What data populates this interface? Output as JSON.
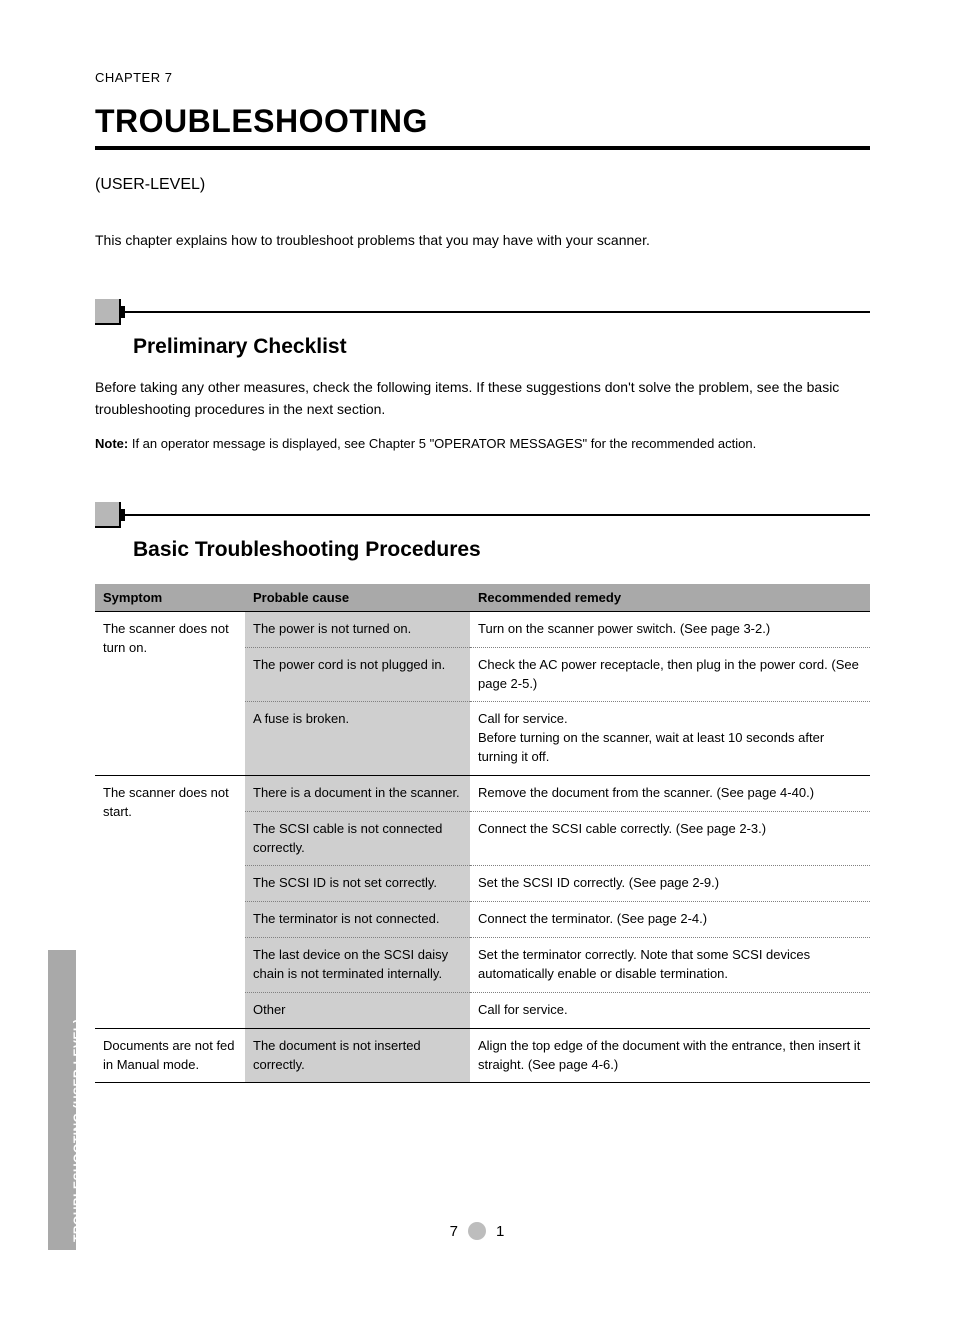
{
  "chapter_label": "CHAPTER 7",
  "chapter_title": "TROUBLESHOOTING",
  "subtitle": "(USER-LEVEL)",
  "intro": "This chapter explains how to troubleshoot problems that you may have with your scanner.",
  "sections": [
    {
      "title": "Preliminary Checklist",
      "body": "Before taking any other measures, check the following items. If these suggestions don't solve the problem, see the basic troubleshooting procedures in the next section.",
      "note_label": "Note:",
      "note_body": "If an operator message is displayed, see Chapter 5 \"OPERATOR MESSAGES\" for the recommended action."
    },
    {
      "title": "Basic Troubleshooting Procedures"
    }
  ],
  "table": {
    "columns": [
      "Symptom",
      "Probable cause",
      "Recommended remedy"
    ],
    "groups": [
      {
        "symptom": "The scanner does not turn on.",
        "rows": [
          {
            "cause": "The power is not turned on.",
            "remedy": "Turn on the scanner power switch. (See page 3-2.)"
          },
          {
            "cause": "The power cord is not plugged in.",
            "remedy": "Check the AC power receptacle, then plug in the power cord. (See page 2-5.)"
          },
          {
            "cause": "A fuse is broken.",
            "remedy": "Call for service.\nBefore turning on the scanner, wait at least 10 seconds after turning it off."
          }
        ]
      },
      {
        "symptom": "The scanner does not start.",
        "rows": [
          {
            "cause": "There is a document in the scanner.",
            "remedy": "Remove the document from the scanner. (See page 4-40.)"
          },
          {
            "cause": "The SCSI cable is not connected correctly.",
            "remedy": "Connect the SCSI cable correctly. (See page 2-3.)"
          },
          {
            "cause": "The SCSI ID is not set correctly.",
            "remedy": "Set the SCSI ID correctly. (See page 2-9.)"
          },
          {
            "cause": "The terminator is not connected.",
            "remedy": "Connect the terminator. (See page 2-4.)"
          },
          {
            "cause": "The last device on the SCSI daisy chain is not terminated internally.",
            "remedy": "Set the terminator correctly. Note that some SCSI devices automatically enable or disable termination."
          },
          {
            "cause": "Other",
            "remedy": "Call for service."
          }
        ]
      },
      {
        "symptom": "Documents are not fed in Manual mode.",
        "rows": [
          {
            "cause": "The document is not inserted correctly.",
            "remedy": "Align the top edge of the document with the entrance, then insert it straight. (See page 4-6.)"
          }
        ]
      }
    ]
  },
  "side_tab": "TROUBLESHOOTING (USER-LEVEL)",
  "page_number_left": "7",
  "page_number_right": "1"
}
